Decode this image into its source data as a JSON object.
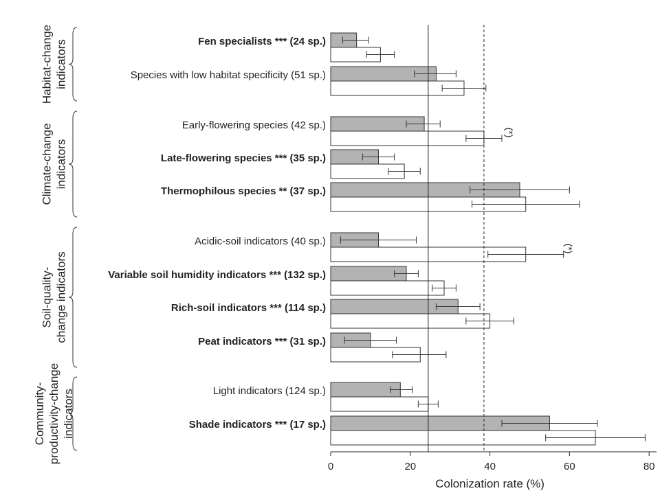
{
  "chart_data": {
    "type": "bar",
    "orientation": "horizontal",
    "xlabel": "Colonization rate (%)",
    "xlim": [
      0,
      90
    ],
    "xticks": [
      0,
      20,
      40,
      60,
      80
    ],
    "series": [
      {
        "name": "",
        "color": "#b3b3b3"
      },
      {
        "name": "",
        "color": "#ffffff"
      }
    ],
    "categories": [
      {
        "label": "Fen specialists *** (24 sp.)",
        "bold": true,
        "gray": 6.5,
        "gray_err": [
          3,
          9.5
        ],
        "white": 12.5,
        "white_err": [
          9,
          16
        ]
      },
      {
        "label": "Species with low habitat specificity (51 sp.)",
        "bold": false,
        "gray": 26.5,
        "gray_err": [
          21,
          31.5
        ],
        "white": 33.5,
        "white_err": [
          28,
          39
        ]
      },
      {
        "label": "Early-flowering species (42 sp.)",
        "bold": false,
        "gray": 23.5,
        "gray_err": [
          19,
          27.5
        ],
        "white": 38.5,
        "white_err": [
          34,
          43
        ]
      },
      {
        "label": "Late-flowering species *** (35 sp.)",
        "bold": true,
        "gray": 12,
        "gray_err": [
          8,
          16
        ],
        "white": 18.5,
        "white_err": [
          14.5,
          22.5
        ]
      },
      {
        "label": "Thermophilous species ** (37 sp.)",
        "bold": true,
        "gray": 47.5,
        "gray_err": [
          35,
          60
        ],
        "white": 49,
        "white_err": [
          35.5,
          62.5
        ]
      },
      {
        "label": "Acidic-soil indicators (40 sp.)",
        "bold": false,
        "gray": 12,
        "gray_err": [
          2.5,
          21.5
        ],
        "white": 49,
        "white_err": [
          39.5,
          58.5
        ]
      },
      {
        "label": "Variable soil humidity indicators *** (132 sp.)",
        "bold": true,
        "gray": 19,
        "gray_err": [
          16,
          22
        ],
        "white": 28.5,
        "white_err": [
          25.5,
          31.5
        ]
      },
      {
        "label": "Rich-soil indicators *** (114 sp.)",
        "bold": true,
        "gray": 32,
        "gray_err": [
          26.5,
          37.5
        ],
        "white": 40,
        "white_err": [
          34,
          46
        ]
      },
      {
        "label": "Peat indicators *** (31 sp.)",
        "bold": true,
        "gray": 10,
        "gray_err": [
          3.5,
          16.5
        ],
        "white": 22.5,
        "white_err": [
          15.5,
          29
        ]
      },
      {
        "label": "Light indicators (124 sp.)",
        "bold": false,
        "gray": 17.5,
        "gray_err": [
          15,
          20.5
        ],
        "white": 24.5,
        "white_err": [
          22,
          27
        ]
      },
      {
        "label": "Shade indicators *** (17 sp.)",
        "bold": true,
        "gray": 55,
        "gray_err": [
          43,
          67
        ],
        "white": 66.5,
        "white_err": [
          54,
          79
        ]
      }
    ],
    "groups": [
      {
        "label_lines": [
          "Habitat-change",
          "indicators"
        ],
        "category_range": [
          0,
          1
        ]
      },
      {
        "label_lines": [
          "Climate-change",
          "indicators"
        ],
        "category_range": [
          2,
          4
        ]
      },
      {
        "label_lines": [
          "Soil-quality-",
          "change indicators"
        ],
        "category_range": [
          5,
          8
        ]
      },
      {
        "label_lines": [
          "Community-",
          "productivity-change",
          "indicators"
        ],
        "category_range": [
          9,
          10
        ]
      }
    ],
    "reference_lines": [
      {
        "x": 24.5,
        "style": "solid"
      },
      {
        "x": 38.5,
        "style": "dashed"
      }
    ],
    "annotations": [
      {
        "text": "(*)",
        "category": 2,
        "x": 44
      },
      {
        "text": "(*)",
        "category": 5,
        "x": 59
      }
    ],
    "grid": false,
    "legend": "none"
  }
}
